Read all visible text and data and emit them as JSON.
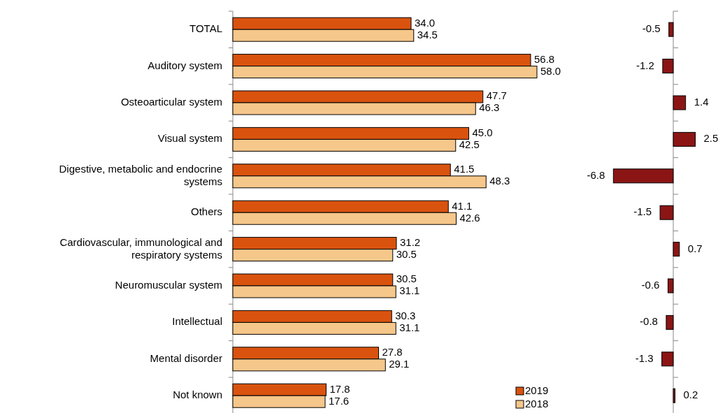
{
  "chart_data": [
    {
      "type": "bar",
      "orientation": "horizontal",
      "legend": "bottom right",
      "categories": [
        "TOTAL",
        "Auditory system",
        "Osteoarticular system",
        "Visual system",
        "Digestive, metabolic and endocrine systems",
        "Others",
        "Cardiovascular, immunological and respiratory systems",
        "Neuromuscular system",
        "Intellectual",
        "Mental disorder",
        "Not known"
      ],
      "series": [
        {
          "name": "2019",
          "color": "#d9530f",
          "values": [
            34.0,
            56.8,
            47.7,
            45.0,
            41.5,
            41.1,
            31.2,
            30.5,
            30.3,
            27.8,
            17.8
          ],
          "value_labels": [
            "34.0",
            "56.8",
            "47.7",
            "45.0",
            "41.5",
            "41.1",
            "31.2",
            "30.5",
            "30.3",
            "27.8",
            "17.8"
          ]
        },
        {
          "name": "2018",
          "color": "#f6c78a",
          "values": [
            34.5,
            58.0,
            46.3,
            42.5,
            48.3,
            42.6,
            30.5,
            31.1,
            31.1,
            29.1,
            17.6
          ],
          "value_labels": [
            "34.5",
            "58.0",
            "46.3",
            "42.5",
            "48.3",
            "42.6",
            "30.5",
            "31.1",
            "31.1",
            "29.1",
            "17.6"
          ]
        }
      ]
    },
    {
      "type": "bar",
      "orientation": "horizontal",
      "categories": [
        null,
        null,
        null,
        null,
        null,
        null,
        null,
        null,
        null,
        null,
        null
      ],
      "series": [
        {
          "color": "#8b1515",
          "values": [
            -0.5,
            -1.2,
            1.4,
            2.5,
            -6.8,
            -1.5,
            0.7,
            -0.6,
            -0.8,
            -1.3,
            0.2
          ],
          "value_labels": [
            "-0.5",
            "-1.2",
            "1.4",
            "2.5",
            "-6.8",
            "-1.5",
            "0.7",
            "-0.6",
            "-0.8",
            "-1.3",
            "0.2"
          ]
        }
      ]
    }
  ]
}
